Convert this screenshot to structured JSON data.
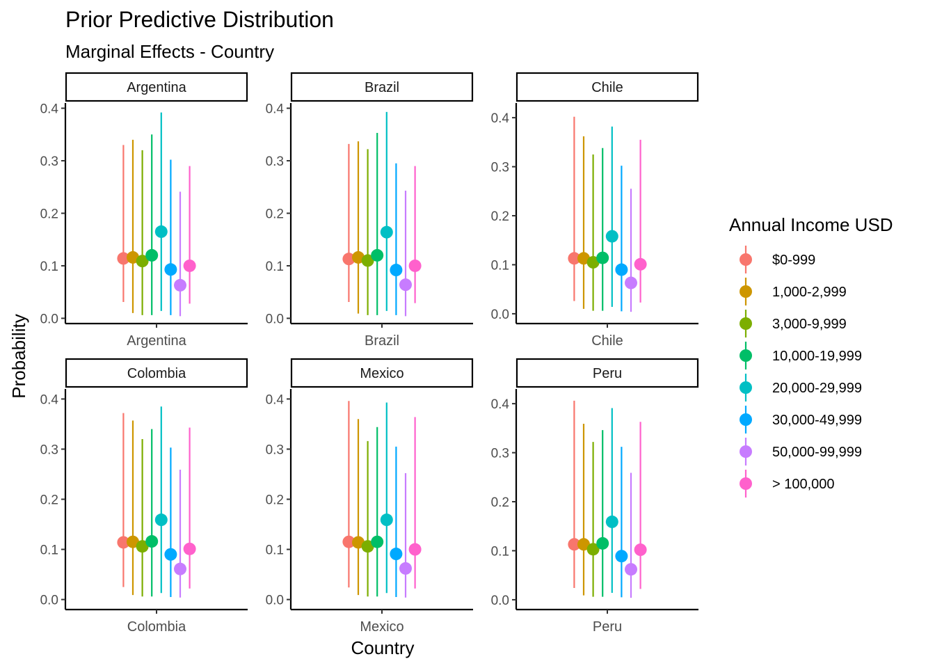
{
  "chart": {
    "title": "Prior Predictive Distribution",
    "subtitle": "Marginal Effects - Country",
    "xlabel": "Country",
    "ylabel": "Probability",
    "legend_title": "Annual Income USD",
    "legend_position": "right"
  },
  "colors": [
    "#F8766D",
    "#CD9600",
    "#7CAE00",
    "#00BE67",
    "#00BFC4",
    "#00A9FF",
    "#C77CFF",
    "#FF61CC"
  ],
  "chart_data": {
    "type": "scatter",
    "representation": "point estimate with interval (pointrange), faceted by country",
    "categories": [
      "$0-999",
      "1,000-2,999",
      "3,000-9,999",
      "10,000-19,999",
      "20,000-29,999",
      "30,000-49,999",
      "50,000-99,999",
      "> 100,000"
    ],
    "yticks": [
      0.0,
      0.1,
      0.2,
      0.3,
      0.4
    ],
    "ytick_labels": [
      "0.0",
      "0.1",
      "0.2",
      "0.3",
      "0.4"
    ],
    "facets": [
      {
        "name": "Argentina",
        "ylim": [
          -0.01,
          0.41
        ],
        "series": [
          {
            "name": "$0-999",
            "estimate": 0.114,
            "lower": 0.031,
            "upper": 0.33
          },
          {
            "name": "1,000-2,999",
            "estimate": 0.116,
            "lower": 0.01,
            "upper": 0.34
          },
          {
            "name": "3,000-9,999",
            "estimate": 0.109,
            "lower": 0.006,
            "upper": 0.32
          },
          {
            "name": "10,000-19,999",
            "estimate": 0.12,
            "lower": 0.006,
            "upper": 0.35
          },
          {
            "name": "20,000-29,999",
            "estimate": 0.165,
            "lower": 0.014,
            "upper": 0.392
          },
          {
            "name": "30,000-49,999",
            "estimate": 0.093,
            "lower": 0.006,
            "upper": 0.302
          },
          {
            "name": "50,000-99,999",
            "estimate": 0.063,
            "lower": 0.004,
            "upper": 0.241
          },
          {
            "name": "> 100,000",
            "estimate": 0.1,
            "lower": 0.028,
            "upper": 0.29
          }
        ]
      },
      {
        "name": "Brazil",
        "ylim": [
          -0.01,
          0.41
        ],
        "series": [
          {
            "name": "$0-999",
            "estimate": 0.113,
            "lower": 0.031,
            "upper": 0.332
          },
          {
            "name": "1,000-2,999",
            "estimate": 0.116,
            "lower": 0.009,
            "upper": 0.337
          },
          {
            "name": "3,000-9,999",
            "estimate": 0.11,
            "lower": 0.006,
            "upper": 0.322
          },
          {
            "name": "10,000-19,999",
            "estimate": 0.12,
            "lower": 0.006,
            "upper": 0.353
          },
          {
            "name": "20,000-29,999",
            "estimate": 0.164,
            "lower": 0.014,
            "upper": 0.393
          },
          {
            "name": "30,000-49,999",
            "estimate": 0.092,
            "lower": 0.006,
            "upper": 0.295
          },
          {
            "name": "50,000-99,999",
            "estimate": 0.064,
            "lower": 0.004,
            "upper": 0.243
          },
          {
            "name": "> 100,000",
            "estimate": 0.1,
            "lower": 0.029,
            "upper": 0.29
          }
        ]
      },
      {
        "name": "Chile",
        "ylim": [
          -0.02,
          0.43
        ],
        "series": [
          {
            "name": "$0-999",
            "estimate": 0.113,
            "lower": 0.026,
            "upper": 0.402
          },
          {
            "name": "1,000-2,999",
            "estimate": 0.113,
            "lower": 0.01,
            "upper": 0.362
          },
          {
            "name": "3,000-9,999",
            "estimate": 0.105,
            "lower": 0.006,
            "upper": 0.325
          },
          {
            "name": "10,000-19,999",
            "estimate": 0.114,
            "lower": 0.006,
            "upper": 0.338
          },
          {
            "name": "20,000-29,999",
            "estimate": 0.158,
            "lower": 0.014,
            "upper": 0.382
          },
          {
            "name": "30,000-49,999",
            "estimate": 0.09,
            "lower": 0.005,
            "upper": 0.302
          },
          {
            "name": "50,000-99,999",
            "estimate": 0.063,
            "lower": 0.004,
            "upper": 0.255
          },
          {
            "name": "> 100,000",
            "estimate": 0.101,
            "lower": 0.023,
            "upper": 0.355
          }
        ]
      },
      {
        "name": "Colombia",
        "ylim": [
          -0.02,
          0.42
        ],
        "series": [
          {
            "name": "$0-999",
            "estimate": 0.114,
            "lower": 0.025,
            "upper": 0.372
          },
          {
            "name": "1,000-2,999",
            "estimate": 0.115,
            "lower": 0.009,
            "upper": 0.357
          },
          {
            "name": "3,000-9,999",
            "estimate": 0.106,
            "lower": 0.006,
            "upper": 0.32
          },
          {
            "name": "10,000-19,999",
            "estimate": 0.116,
            "lower": 0.006,
            "upper": 0.34
          },
          {
            "name": "20,000-29,999",
            "estimate": 0.159,
            "lower": 0.013,
            "upper": 0.385
          },
          {
            "name": "30,000-49,999",
            "estimate": 0.09,
            "lower": 0.005,
            "upper": 0.303
          },
          {
            "name": "50,000-99,999",
            "estimate": 0.061,
            "lower": 0.004,
            "upper": 0.259
          },
          {
            "name": "> 100,000",
            "estimate": 0.101,
            "lower": 0.022,
            "upper": 0.343
          }
        ]
      },
      {
        "name": "Mexico",
        "ylim": [
          -0.02,
          0.42
        ],
        "series": [
          {
            "name": "$0-999",
            "estimate": 0.115,
            "lower": 0.024,
            "upper": 0.396
          },
          {
            "name": "1,000-2,999",
            "estimate": 0.114,
            "lower": 0.009,
            "upper": 0.36
          },
          {
            "name": "3,000-9,999",
            "estimate": 0.106,
            "lower": 0.006,
            "upper": 0.316
          },
          {
            "name": "10,000-19,999",
            "estimate": 0.115,
            "lower": 0.006,
            "upper": 0.344
          },
          {
            "name": "20,000-29,999",
            "estimate": 0.159,
            "lower": 0.013,
            "upper": 0.393
          },
          {
            "name": "30,000-49,999",
            "estimate": 0.091,
            "lower": 0.005,
            "upper": 0.305
          },
          {
            "name": "50,000-99,999",
            "estimate": 0.062,
            "lower": 0.004,
            "upper": 0.252
          },
          {
            "name": "> 100,000",
            "estimate": 0.1,
            "lower": 0.022,
            "upper": 0.364
          }
        ]
      },
      {
        "name": "Peru",
        "ylim": [
          -0.02,
          0.43
        ],
        "series": [
          {
            "name": "$0-999",
            "estimate": 0.113,
            "lower": 0.024,
            "upper": 0.406
          },
          {
            "name": "1,000-2,999",
            "estimate": 0.113,
            "lower": 0.009,
            "upper": 0.359
          },
          {
            "name": "3,000-9,999",
            "estimate": 0.103,
            "lower": 0.006,
            "upper": 0.322
          },
          {
            "name": "10,000-19,999",
            "estimate": 0.115,
            "lower": 0.006,
            "upper": 0.346
          },
          {
            "name": "20,000-29,999",
            "estimate": 0.159,
            "lower": 0.014,
            "upper": 0.391
          },
          {
            "name": "30,000-49,999",
            "estimate": 0.089,
            "lower": 0.005,
            "upper": 0.312
          },
          {
            "name": "50,000-99,999",
            "estimate": 0.062,
            "lower": 0.004,
            "upper": 0.259
          },
          {
            "name": "> 100,000",
            "estimate": 0.102,
            "lower": 0.022,
            "upper": 0.363
          }
        ]
      }
    ]
  }
}
